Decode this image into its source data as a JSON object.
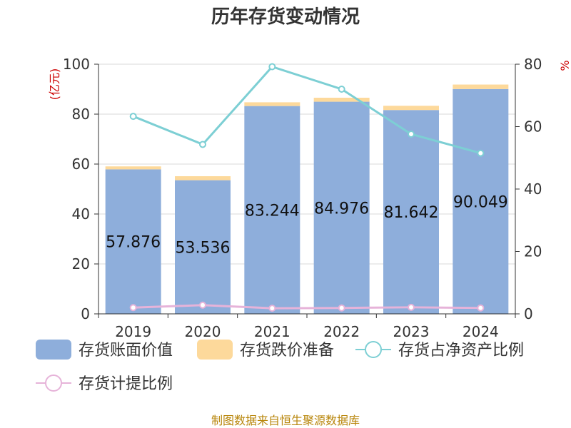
{
  "chart_data": {
    "type": "bar",
    "title": "历年存货变动情况",
    "left_unit": "(亿元)",
    "right_unit": "%",
    "categories": [
      "2019",
      "2020",
      "2021",
      "2022",
      "2023",
      "2024"
    ],
    "ylim_left": [
      0,
      100
    ],
    "yticks_left": [
      "0",
      "20",
      "40",
      "60",
      "80",
      "100"
    ],
    "ylim_right": [
      0,
      80
    ],
    "yticks_right": [
      "0",
      "20",
      "40",
      "60",
      "80"
    ],
    "grid": true,
    "legend_position": "bottom",
    "series": [
      {
        "name": "存货账面价值",
        "kind": "bar",
        "axis": "left",
        "color": "#8eaedb",
        "values": [
          57.876,
          53.536,
          83.244,
          84.976,
          81.642,
          90.049
        ],
        "labels": [
          "57.876",
          "53.536",
          "83.244",
          "84.976",
          "81.642",
          "90.049"
        ]
      },
      {
        "name": "存货跌价准备",
        "kind": "bar-stacked",
        "axis": "left",
        "color": "#fdd99b",
        "values": [
          1.2,
          1.6,
          1.5,
          1.6,
          1.7,
          1.8
        ]
      },
      {
        "name": "存货占净资产比例",
        "kind": "line",
        "axis": "right",
        "color": "#7dcfd4",
        "values": [
          63.3,
          54.3,
          79.2,
          72.0,
          57.6,
          51.5
        ]
      },
      {
        "name": "存货计提比例",
        "kind": "line",
        "axis": "right",
        "color": "#e6b3d9",
        "values": [
          2.0,
          2.8,
          1.8,
          1.9,
          2.1,
          1.9
        ]
      }
    ]
  },
  "footer": "制图数据来自恒生聚源数据库"
}
